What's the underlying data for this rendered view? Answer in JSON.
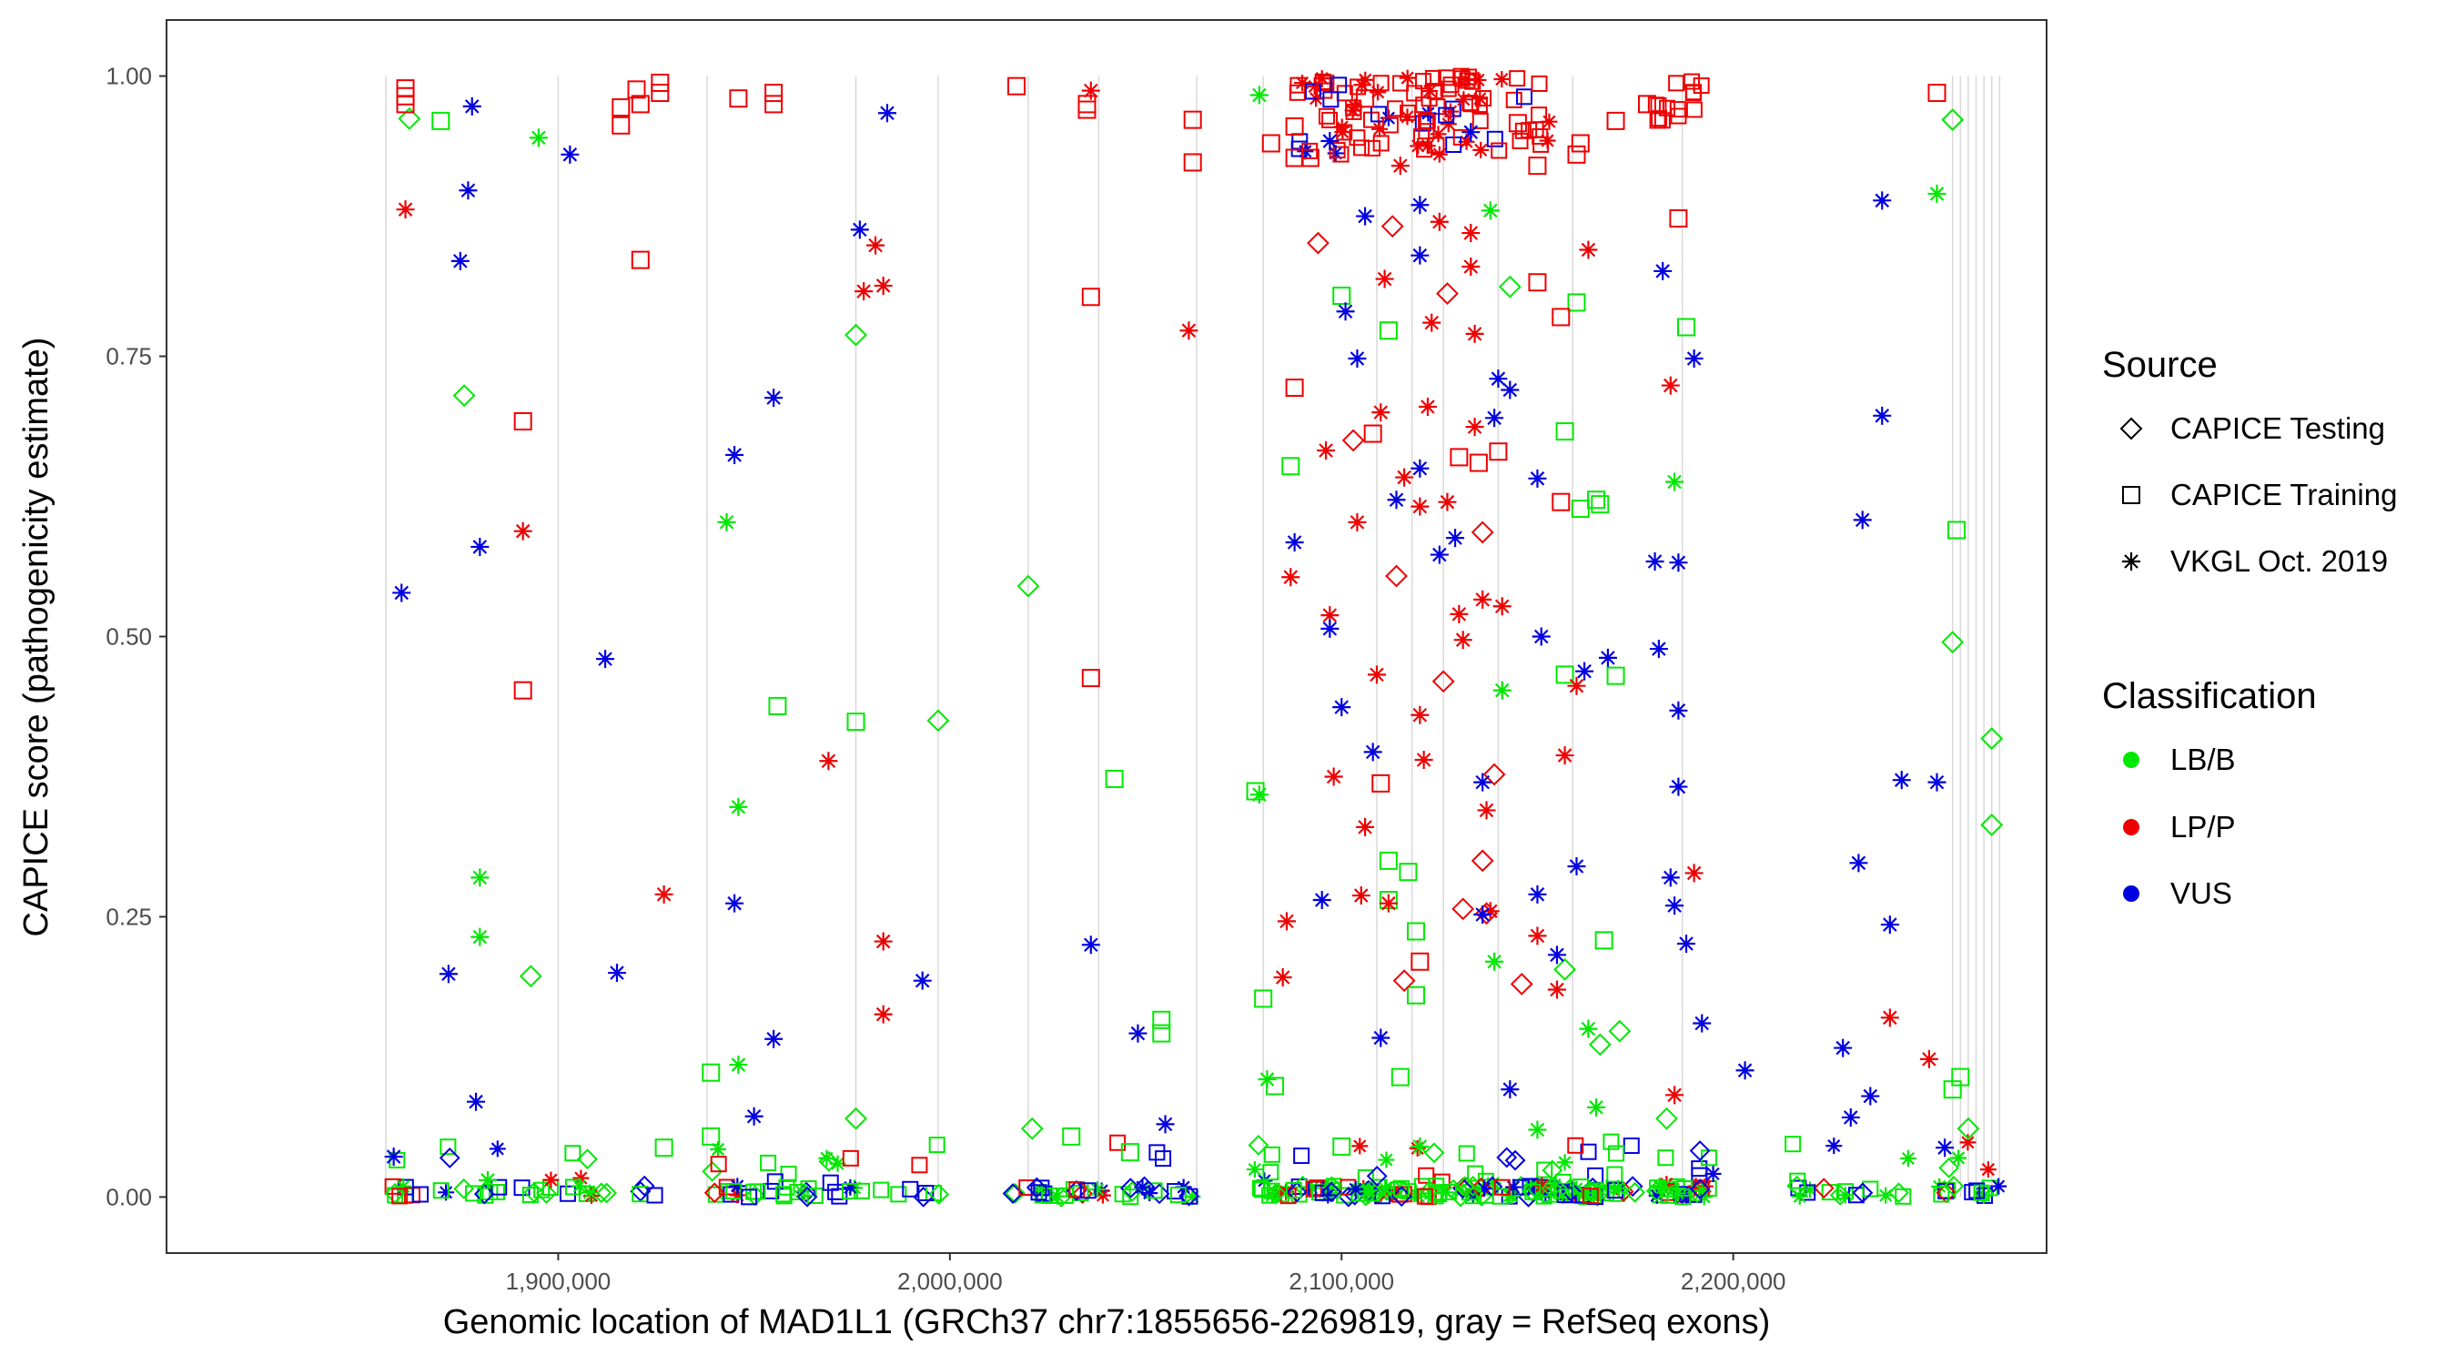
{
  "chart_data": {
    "type": "scatter",
    "title": "",
    "xlabel": "Genomic location of MAD1L1 (GRCh37 chr7:1855656-2269819, gray = RefSeq exons)",
    "ylabel": "CAPICE score (pathogenicity estimate)",
    "xlim": [
      1800000,
      2280000
    ],
    "ylim": [
      -0.05,
      1.05
    ],
    "x_ticks": [
      1900000,
      2000000,
      2100000,
      2200000
    ],
    "x_tick_labels": [
      "1,900,000",
      "2,000,000",
      "2,100,000",
      "2,200,000"
    ],
    "y_ticks": [
      0,
      0.25,
      0.5,
      0.75,
      1
    ],
    "y_tick_labels": [
      "0.00",
      "0.25",
      "0.50",
      "0.75",
      "1.00"
    ],
    "exon_positions": [
      1856000,
      1900000,
      1938000,
      1976000,
      1997000,
      2020000,
      2038000,
      2063000,
      2080000,
      2109000,
      2118000,
      2126000,
      2140000,
      2159000,
      2187000,
      2256000,
      2258000,
      2260000,
      2262000,
      2264000,
      2266000,
      2268000
    ],
    "colors": {
      "LB/B": "#00e800",
      "LP/P": "#ee0000",
      "VUS": "#0000e0"
    },
    "legend": {
      "source_title": "Source",
      "source_items": [
        {
          "label": "CAPICE Testing",
          "shape": "diamond"
        },
        {
          "label": "CAPICE Training",
          "shape": "square"
        },
        {
          "label": "VKGL Oct. 2019",
          "shape": "asterisk"
        }
      ],
      "class_title": "Classification",
      "class_items": [
        {
          "label": "LB/B",
          "color": "#00e800"
        },
        {
          "label": "LP/P",
          "color": "#ee0000"
        },
        {
          "label": "VUS",
          "color": "#0000e0"
        }
      ]
    },
    "series": [
      {
        "name": "LB/B",
        "source": "CAPICE Testing",
        "points": [
          [
            1862000,
            0.962
          ],
          [
            1876000,
            0.715
          ],
          [
            1893000,
            0.197
          ],
          [
            1976000,
            0.769
          ],
          [
            1976000,
            0.07
          ],
          [
            1997000,
            0.425
          ],
          [
            2020000,
            0.545
          ],
          [
            2021000,
            0.061
          ],
          [
            2143000,
            0.812
          ],
          [
            2157000,
            0.203
          ],
          [
            2166000,
            0.136
          ],
          [
            2183000,
            0.07
          ],
          [
            2256000,
            0.961
          ],
          [
            2256000,
            0.495
          ],
          [
            2260000,
            0.061
          ],
          [
            2266000,
            0.409
          ],
          [
            2266000,
            0.332
          ],
          [
            2171000,
            0.148
          ]
        ]
      },
      {
        "name": "LB/B",
        "source": "CAPICE Training",
        "points": [
          [
            1870000,
            0.96
          ],
          [
            1939000,
            0.111
          ],
          [
            1939000,
            0.054
          ],
          [
            1956000,
            0.438
          ],
          [
            1976000,
            0.424
          ],
          [
            2042000,
            0.373
          ],
          [
            2054000,
            0.158
          ],
          [
            2054000,
            0.146
          ],
          [
            2078000,
            0.362
          ],
          [
            2080000,
            0.177
          ],
          [
            2083000,
            0.099
          ],
          [
            2087000,
            0.652
          ],
          [
            2100000,
            0.804
          ],
          [
            2112000,
            0.3
          ],
          [
            2112000,
            0.265
          ],
          [
            2112000,
            0.773
          ],
          [
            2115000,
            0.107
          ],
          [
            2117000,
            0.29
          ],
          [
            2119000,
            0.237
          ],
          [
            2119000,
            0.18
          ],
          [
            2157000,
            0.683
          ],
          [
            2157000,
            0.466
          ],
          [
            2160000,
            0.798
          ],
          [
            2161000,
            0.614
          ],
          [
            2165000,
            0.622
          ],
          [
            2166000,
            0.618
          ],
          [
            2167000,
            0.229
          ],
          [
            2170000,
            0.465
          ],
          [
            2188000,
            0.776
          ],
          [
            2257000,
            0.595
          ],
          [
            2258000,
            0.107
          ],
          [
            2256000,
            0.096
          ],
          [
            2031000,
            0.054
          ],
          [
            1927000,
            0.044
          ],
          [
            2046000,
            0.04
          ],
          [
            2100000,
            0.045
          ]
        ]
      },
      {
        "name": "LB/B",
        "source": "VKGL Oct. 2019",
        "points": [
          [
            1895000,
            0.945
          ],
          [
            1880000,
            0.285
          ],
          [
            1880000,
            0.232
          ],
          [
            1943000,
            0.602
          ],
          [
            1946000,
            0.348
          ],
          [
            1946000,
            0.118
          ],
          [
            2079000,
            0.983
          ],
          [
            2079000,
            0.359
          ],
          [
            2081000,
            0.105
          ],
          [
            2141000,
            0.452
          ],
          [
            2138000,
            0.88
          ],
          [
            2185000,
            0.638
          ],
          [
            2252000,
            0.895
          ],
          [
            2139000,
            0.21
          ],
          [
            2163000,
            0.15
          ],
          [
            2120000,
            0.045
          ],
          [
            2150000,
            0.06
          ],
          [
            2165000,
            0.08
          ],
          [
            1882000,
            0.015
          ]
        ]
      },
      {
        "name": "LP/P",
        "source": "CAPICE Testing",
        "points": [
          [
            2094000,
            0.851
          ],
          [
            2103000,
            0.675
          ],
          [
            2114000,
            0.554
          ],
          [
            2126000,
            0.46
          ],
          [
            2136000,
            0.3
          ],
          [
            2139000,
            0.377
          ],
          [
            2131000,
            0.257
          ],
          [
            2137000,
            0.253
          ],
          [
            2146000,
            0.19
          ],
          [
            2113000,
            0.866
          ],
          [
            2136000,
            0.593
          ],
          [
            2116000,
            0.193
          ],
          [
            2127000,
            0.806
          ]
        ]
      },
      {
        "name": "LP/P",
        "source": "CAPICE Training",
        "points": [
          [
            1861000,
            0.989
          ],
          [
            1861000,
            0.982
          ],
          [
            1861000,
            0.975
          ],
          [
            1891000,
            0.692
          ],
          [
            1891000,
            0.452
          ],
          [
            1916000,
            0.956
          ],
          [
            1916000,
            0.972
          ],
          [
            1920000,
            0.988
          ],
          [
            1921000,
            0.975
          ],
          [
            1921000,
            0.836
          ],
          [
            1926000,
            0.994
          ],
          [
            1926000,
            0.985
          ],
          [
            1946000,
            0.98
          ],
          [
            1955000,
            0.985
          ],
          [
            1955000,
            0.975
          ],
          [
            2017000,
            0.991
          ],
          [
            2035000,
            0.975
          ],
          [
            2035000,
            0.97
          ],
          [
            2036000,
            0.803
          ],
          [
            2036000,
            0.463
          ],
          [
            2062000,
            0.961
          ],
          [
            2062000,
            0.923
          ],
          [
            2082000,
            0.94
          ],
          [
            2088000,
            0.955
          ],
          [
            2088000,
            0.927
          ],
          [
            2088000,
            0.722
          ],
          [
            2092000,
            0.927
          ],
          [
            2108000,
            0.681
          ],
          [
            2110000,
            0.369
          ],
          [
            2120000,
            0.21
          ],
          [
            2130000,
            0.66
          ],
          [
            2135000,
            0.655
          ],
          [
            2140000,
            0.665
          ],
          [
            2150000,
            0.816
          ],
          [
            2156000,
            0.785
          ],
          [
            2156000,
            0.62
          ],
          [
            2160000,
            0.93
          ],
          [
            2161000,
            0.94
          ],
          [
            2186000,
            0.873
          ],
          [
            2252000,
            0.985
          ],
          [
            2150000,
            0.92
          ],
          [
            2145000,
            0.958
          ],
          [
            2170000,
            0.96
          ],
          [
            2178000,
            0.975
          ],
          [
            2106000,
            0.98
          ]
        ]
      },
      {
        "name": "LP/P",
        "source": "VKGL Oct. 2019",
        "points": [
          [
            1861000,
            0.881
          ],
          [
            1891000,
            0.594
          ],
          [
            1927000,
            0.27
          ],
          [
            1969000,
            0.389
          ],
          [
            1978000,
            0.808
          ],
          [
            1981000,
            0.849
          ],
          [
            1983000,
            0.813
          ],
          [
            1983000,
            0.228
          ],
          [
            1983000,
            0.163
          ],
          [
            2036000,
            0.987
          ],
          [
            2061000,
            0.773
          ],
          [
            2087000,
            0.553
          ],
          [
            2086000,
            0.246
          ],
          [
            2085000,
            0.196
          ],
          [
            2096000,
            0.666
          ],
          [
            2097000,
            0.519
          ],
          [
            2098000,
            0.375
          ],
          [
            2104000,
            0.602
          ],
          [
            2105000,
            0.269
          ],
          [
            2106000,
            0.33
          ],
          [
            2109000,
            0.466
          ],
          [
            2112000,
            0.262
          ],
          [
            2110000,
            0.7
          ],
          [
            2116000,
            0.642
          ],
          [
            2120000,
            0.616
          ],
          [
            2122000,
            0.705
          ],
          [
            2120000,
            0.43
          ],
          [
            2121000,
            0.39
          ],
          [
            2127000,
            0.62
          ],
          [
            2130000,
            0.52
          ],
          [
            2131000,
            0.497
          ],
          [
            2133000,
            0.83
          ],
          [
            2134000,
            0.687
          ],
          [
            2136000,
            0.533
          ],
          [
            2137000,
            0.345
          ],
          [
            2138000,
            0.255
          ],
          [
            2134000,
            0.77
          ],
          [
            2141000,
            0.527
          ],
          [
            2150000,
            0.233
          ],
          [
            2155000,
            0.185
          ],
          [
            2157000,
            0.394
          ],
          [
            2160000,
            0.456
          ],
          [
            2163000,
            0.845
          ],
          [
            2184000,
            0.724
          ],
          [
            2190000,
            0.289
          ],
          [
            2185000,
            0.091
          ],
          [
            2240000,
            0.16
          ],
          [
            2250000,
            0.123
          ],
          [
            2133000,
            0.86
          ],
          [
            2125000,
            0.87
          ],
          [
            2115000,
            0.92
          ],
          [
            2123000,
            0.78
          ],
          [
            2111000,
            0.819
          ]
        ]
      },
      {
        "name": "VUS",
        "source": "VKGL Oct. 2019",
        "points": [
          [
            1860000,
            0.539
          ],
          [
            1872000,
            0.199
          ],
          [
            1875000,
            0.835
          ],
          [
            1877000,
            0.898
          ],
          [
            1878000,
            0.973
          ],
          [
            1879000,
            0.085
          ],
          [
            1880000,
            0.58
          ],
          [
            1903000,
            0.93
          ],
          [
            1912000,
            0.48
          ],
          [
            1915000,
            0.2
          ],
          [
            1945000,
            0.662
          ],
          [
            1945000,
            0.262
          ],
          [
            1955000,
            0.713
          ],
          [
            1955000,
            0.141
          ],
          [
            1977000,
            0.863
          ],
          [
            1984000,
            0.967
          ],
          [
            1993000,
            0.193
          ],
          [
            2036000,
            0.225
          ],
          [
            2048000,
            0.146
          ],
          [
            2055000,
            0.065
          ],
          [
            2088000,
            0.584
          ],
          [
            2095000,
            0.265
          ],
          [
            2097000,
            0.942
          ],
          [
            2097000,
            0.507
          ],
          [
            2100000,
            0.437
          ],
          [
            2101000,
            0.79
          ],
          [
            2104000,
            0.748
          ],
          [
            2106000,
            0.875
          ],
          [
            2108000,
            0.397
          ],
          [
            2110000,
            0.142
          ],
          [
            2114000,
            0.622
          ],
          [
            2120000,
            0.84
          ],
          [
            2120000,
            0.65
          ],
          [
            2125000,
            0.573
          ],
          [
            2129000,
            0.588
          ],
          [
            2136000,
            0.37
          ],
          [
            2136000,
            0.252
          ],
          [
            2139000,
            0.695
          ],
          [
            2140000,
            0.73
          ],
          [
            2143000,
            0.72
          ],
          [
            2143000,
            0.096
          ],
          [
            2150000,
            0.641
          ],
          [
            2151000,
            0.5
          ],
          [
            2155000,
            0.216
          ],
          [
            2160000,
            0.295
          ],
          [
            2162000,
            0.469
          ],
          [
            2168000,
            0.481
          ],
          [
            2180000,
            0.567
          ],
          [
            2181000,
            0.489
          ],
          [
            2182000,
            0.826
          ],
          [
            2184000,
            0.285
          ],
          [
            2185000,
            0.26
          ],
          [
            2186000,
            0.566
          ],
          [
            2186000,
            0.434
          ],
          [
            2186000,
            0.366
          ],
          [
            2188000,
            0.226
          ],
          [
            2190000,
            0.748
          ],
          [
            2192000,
            0.155
          ],
          [
            2203000,
            0.113
          ],
          [
            2228000,
            0.133
          ],
          [
            2230000,
            0.071
          ],
          [
            2232000,
            0.298
          ],
          [
            2233000,
            0.604
          ],
          [
            2235000,
            0.09
          ],
          [
            2238000,
            0.697
          ],
          [
            2238000,
            0.889
          ],
          [
            2240000,
            0.243
          ],
          [
            2243000,
            0.372
          ],
          [
            2252000,
            0.37
          ],
          [
            2254000,
            0.044
          ],
          [
            2133000,
            0.95
          ],
          [
            2150000,
            0.27
          ],
          [
            2120000,
            0.885
          ],
          [
            1858000,
            0.036
          ],
          [
            1950000,
            0.072
          ]
        ]
      }
    ]
  }
}
